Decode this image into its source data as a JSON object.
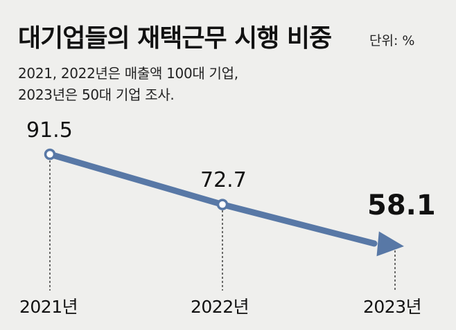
{
  "header": {
    "title": "대기업들의 재택근무 시행 비중",
    "unit": "단위: %",
    "subtitle_line1": "2021, 2022년은 매출액 100대 기업,",
    "subtitle_line2": "2023년은 50대 기업 조사."
  },
  "colors": {
    "background": "#efefed",
    "line": "#5878a6",
    "text": "#111111"
  },
  "chart_data": {
    "type": "line",
    "categories": [
      "2021년",
      "2022년",
      "2023년"
    ],
    "values": [
      91.5,
      72.7,
      58.1
    ],
    "value_labels": [
      "91.5",
      "72.7",
      "58.1"
    ],
    "highlight_last": true,
    "title": "대기업들의 재택근무 시행 비중",
    "ylabel": "",
    "xlabel": "",
    "grid": false
  }
}
